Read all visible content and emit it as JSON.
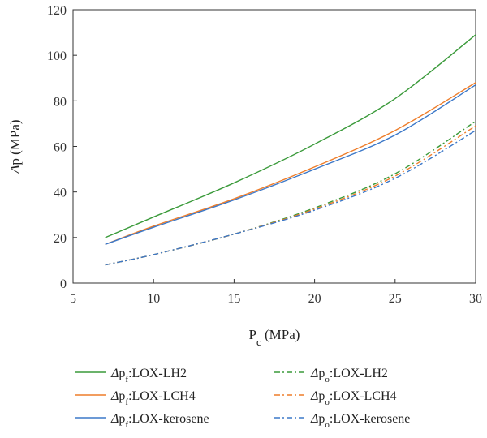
{
  "chart_data": {
    "type": "line",
    "xlabel": "P_c (MPa)",
    "ylabel": "Δp (MPa)",
    "xlim": [
      5,
      30
    ],
    "ylim": [
      0,
      120
    ],
    "xticks": [
      "5",
      "10",
      "15",
      "20",
      "25",
      "30"
    ],
    "yticks": [
      "0",
      "20",
      "40",
      "60",
      "80",
      "100",
      "120"
    ],
    "legend_placement": "bottom",
    "grid": false,
    "series": [
      {
        "name": "Δpf:LOX-LH2",
        "color": "#3a9a3a",
        "dash": "solid",
        "x": [
          7,
          10,
          15,
          20,
          25,
          30
        ],
        "y": [
          20,
          29,
          44,
          61,
          81,
          109
        ]
      },
      {
        "name": "Δpf:LOX-LCH4",
        "color": "#ee7d2a",
        "dash": "solid",
        "x": [
          7,
          10,
          15,
          20,
          25,
          30
        ],
        "y": [
          17,
          25,
          37,
          51,
          67,
          88
        ]
      },
      {
        "name": "Δpf:LOX-kerosene",
        "color": "#3c78c8",
        "dash": "solid",
        "x": [
          7,
          10,
          15,
          20,
          25,
          30
        ],
        "y": [
          17,
          24.5,
          36.5,
          50,
          65,
          87
        ]
      },
      {
        "name": "Δpo:LOX-LH2",
        "color": "#3a9a3a",
        "dash": "dashdot",
        "x": [
          7,
          10,
          15,
          20,
          25,
          30
        ],
        "y": [
          8,
          12.5,
          21.5,
          33,
          48,
          71
        ]
      },
      {
        "name": "Δpo:LOX-LCH4",
        "color": "#ee7d2a",
        "dash": "dashdot",
        "x": [
          7,
          10,
          15,
          20,
          25,
          30
        ],
        "y": [
          8,
          12.5,
          21.5,
          32.5,
          47,
          69
        ]
      },
      {
        "name": "Δpo:LOX-kerosene",
        "color": "#3c78c8",
        "dash": "dashdot",
        "x": [
          7,
          10,
          15,
          20,
          25,
          30
        ],
        "y": [
          8,
          12.5,
          21.5,
          32,
          46,
          67
        ]
      }
    ],
    "legend": [
      {
        "symbol": "Δ",
        "base": "p",
        "sub": "f",
        "label": ":LOX-LH2"
      },
      {
        "symbol": "Δ",
        "base": "p",
        "sub": "f",
        "label": ":LOX-LCH4"
      },
      {
        "symbol": "Δ",
        "base": "p",
        "sub": "f",
        "label": ":LOX-kerosene"
      },
      {
        "symbol": "Δ",
        "base": "p",
        "sub": "o",
        "label": ":LOX-LH2"
      },
      {
        "symbol": "Δ",
        "base": "p",
        "sub": "o",
        "label": ":LOX-LCH4"
      },
      {
        "symbol": "Δ",
        "base": "p",
        "sub": "o",
        "label": ":LOX-kerosene"
      }
    ]
  }
}
